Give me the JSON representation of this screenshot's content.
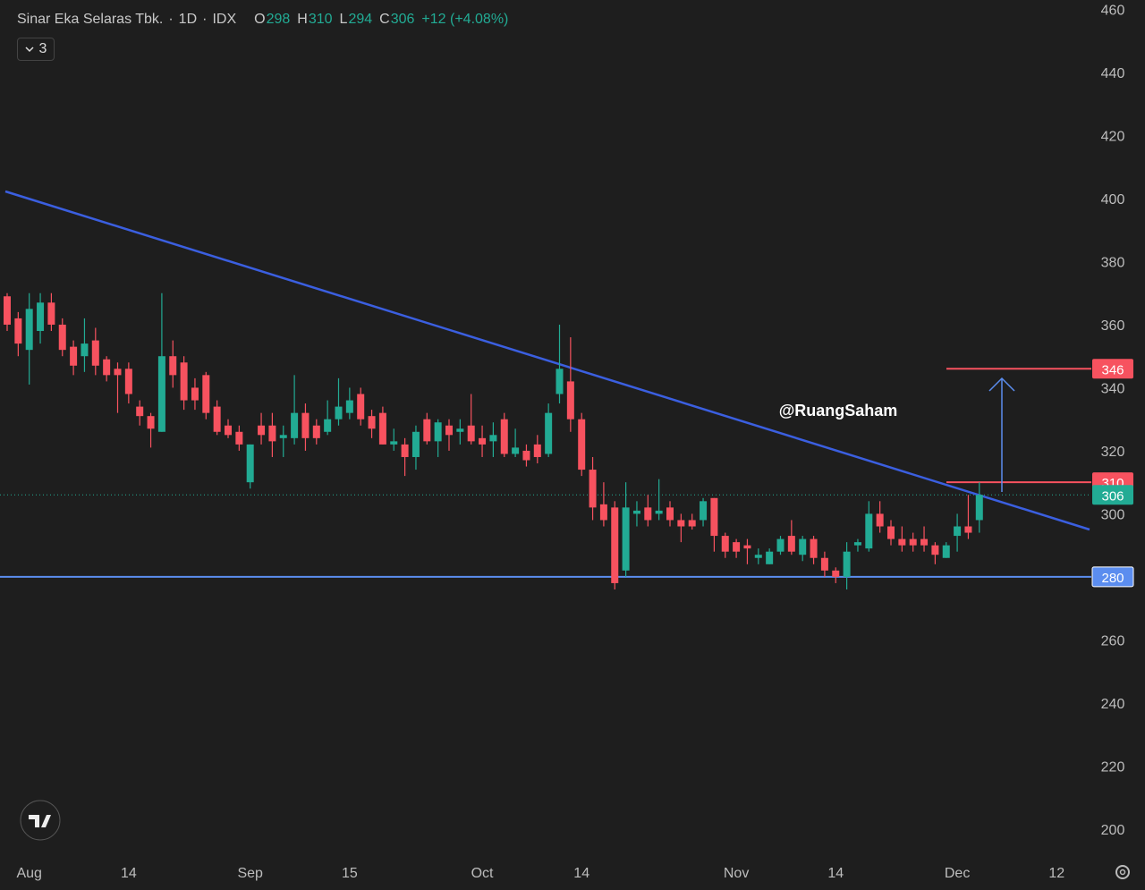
{
  "chart_data": {
    "type": "candlestick",
    "title": "Sinar Eka Selaras Tbk.",
    "separator": "·",
    "interval": "1D",
    "exchange": "IDX",
    "ohlc_labels": [
      "O",
      "H",
      "L",
      "C"
    ],
    "change": "+12 (+4.08%)",
    "indicator_count": "3",
    "watermark": "@RuangSaham",
    "up_color": "#22ab94",
    "down_color": "#f7525f",
    "categories": [
      null,
      null,
      "Aug",
      null,
      null,
      null,
      null,
      null,
      null,
      null,
      null,
      "14",
      null,
      null,
      null,
      null,
      null,
      null,
      null,
      null,
      null,
      null,
      "Sep",
      null,
      null,
      null,
      null,
      null,
      null,
      null,
      null,
      "15",
      null,
      null,
      null,
      null,
      null,
      null,
      null,
      null,
      null,
      null,
      null,
      "Oct",
      null,
      null,
      null,
      null,
      null,
      null,
      null,
      null,
      "14",
      null,
      null,
      null,
      null,
      null,
      null,
      null,
      null,
      null,
      null,
      null,
      null,
      null,
      "Nov",
      null,
      null,
      null,
      null,
      null,
      null,
      null,
      null,
      "14",
      null,
      null,
      null,
      null,
      null,
      null,
      null,
      null,
      null,
      null,
      "Dec",
      null,
      null,
      null,
      null,
      null,
      null,
      null,
      null,
      "12"
    ],
    "open": [
      369,
      362,
      352,
      358,
      367,
      360,
      353,
      350,
      355,
      349,
      346,
      346,
      334,
      331,
      326,
      350,
      348,
      340,
      344,
      334,
      328,
      326,
      310,
      328,
      328,
      324,
      324,
      332,
      328,
      326,
      330,
      332,
      338,
      331,
      332,
      322,
      322,
      318,
      330,
      323,
      328,
      326,
      328,
      324,
      323,
      330,
      319,
      320,
      322,
      319,
      338,
      342,
      330,
      314,
      303,
      302,
      282,
      300,
      302,
      300,
      302,
      298,
      298,
      298,
      305,
      293,
      291,
      290,
      286,
      284,
      288,
      293,
      287,
      292,
      286,
      282,
      280,
      290,
      289,
      300,
      296,
      292,
      292,
      292,
      290,
      286,
      293,
      296,
      298,
      null,
      null,
      null,
      null,
      null,
      null,
      null
    ],
    "high": [
      370,
      364,
      370,
      370,
      370,
      362,
      355,
      362,
      359,
      350,
      348,
      348,
      336,
      332,
      370,
      355,
      350,
      343,
      345,
      336,
      330,
      328,
      322,
      332,
      332,
      328,
      344,
      335,
      330,
      336,
      343,
      340,
      340,
      333,
      334,
      327,
      324,
      328,
      332,
      330,
      330,
      330,
      338,
      328,
      329,
      332,
      327,
      322,
      325,
      335,
      360,
      356,
      332,
      318,
      310,
      304,
      310,
      304,
      306,
      311,
      304,
      300,
      300,
      305,
      305,
      294,
      292,
      292,
      289,
      289,
      293,
      298,
      293,
      293,
      288,
      283,
      291,
      292,
      304,
      304,
      298,
      296,
      294,
      296,
      291,
      291,
      300,
      306,
      310,
      null,
      null,
      null,
      null,
      null,
      null,
      null
    ],
    "low": [
      358,
      350,
      341,
      354,
      358,
      350,
      344,
      345,
      344,
      342,
      332,
      335,
      328,
      321,
      326,
      340,
      333,
      333,
      330,
      325,
      324,
      320,
      308,
      322,
      318,
      318,
      322,
      320,
      322,
      325,
      328,
      330,
      328,
      324,
      322,
      320,
      312,
      314,
      322,
      318,
      320,
      322,
      322,
      318,
      318,
      318,
      318,
      315,
      316,
      318,
      335,
      326,
      312,
      298,
      296,
      276,
      280,
      296,
      296,
      298,
      296,
      291,
      295,
      296,
      288,
      286,
      286,
      284,
      284,
      284,
      287,
      287,
      285,
      284,
      280,
      278,
      276,
      288,
      288,
      294,
      290,
      288,
      288,
      288,
      284,
      286,
      288,
      292,
      294,
      null,
      null,
      null,
      null,
      null,
      null,
      null
    ],
    "close": [
      360,
      354,
      365,
      367,
      360,
      352,
      347,
      354,
      347,
      344,
      344,
      338,
      331,
      327,
      350,
      344,
      336,
      336,
      332,
      326,
      325,
      322,
      322,
      325,
      323,
      325,
      332,
      324,
      324,
      330,
      334,
      336,
      330,
      327,
      322,
      323,
      318,
      326,
      323,
      329,
      325,
      327,
      323,
      322,
      325,
      319,
      321,
      317,
      318,
      332,
      346,
      330,
      314,
      302,
      298,
      278,
      302,
      301,
      298,
      301,
      298,
      296,
      296,
      304,
      293,
      288,
      288,
      289,
      287,
      288,
      292,
      288,
      292,
      286,
      282,
      280,
      288,
      291,
      300,
      296,
      292,
      290,
      290,
      290,
      287,
      290,
      296,
      294,
      306,
      null,
      null,
      null,
      null,
      null,
      null,
      null
    ],
    "ylim": [
      192,
      463
    ],
    "yticks": [
      200,
      220,
      240,
      260,
      280,
      300,
      320,
      340,
      360,
      380,
      400,
      420,
      440,
      460
    ],
    "levels": [
      {
        "value": 346,
        "color": "#f7525f",
        "line": "partial"
      },
      {
        "value": 310,
        "color": "#f7525f",
        "line": "partial"
      },
      {
        "value": 306,
        "color": "#22ab94",
        "line": "dotted"
      },
      {
        "value": 280,
        "color": "#5b8def",
        "line": "full"
      }
    ]
  }
}
